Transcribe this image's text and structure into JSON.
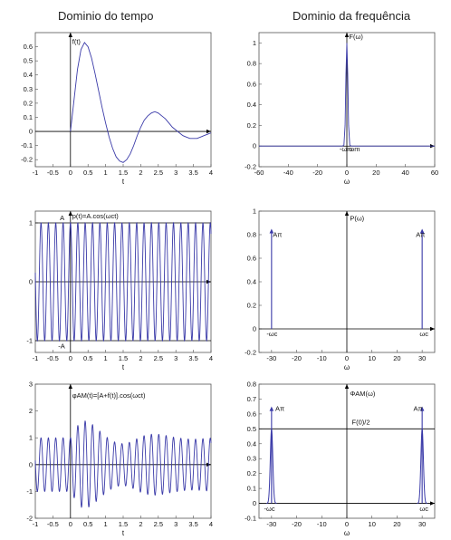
{
  "headings": {
    "time": "Dominio do tempo",
    "freq": "Dominio da frequência"
  },
  "colors": {
    "curve": "#3a3aa8",
    "axis": "#000000",
    "frame": "#555555"
  },
  "chart_data": [
    {
      "id": "ft",
      "type": "line",
      "xlim": [
        -1,
        4
      ],
      "ylim": [
        -0.25,
        0.7
      ],
      "xticks": [
        "-1",
        "-0.5",
        "0",
        "0.5",
        "1",
        "1.5",
        "2",
        "2.5",
        "3",
        "3.5",
        "4"
      ],
      "xtick_values": [
        -1,
        -0.5,
        0,
        0.5,
        1,
        1.5,
        2,
        2.5,
        3,
        3.5,
        4
      ],
      "yticks": [
        "-0.2",
        "-0.1",
        "0",
        "0.1",
        "0.2",
        "0.3",
        "0.4",
        "0.5",
        "0.6"
      ],
      "ytick_values": [
        -0.2,
        -0.1,
        0,
        0.1,
        0.2,
        0.3,
        0.4,
        0.5,
        0.6
      ],
      "xlabel": "t",
      "annotations": [
        {
          "text": "f(t)",
          "x": 0.05,
          "y": 0.62
        }
      ],
      "series": [
        {
          "x": [
            0,
            0.1,
            0.2,
            0.3,
            0.4,
            0.5,
            0.6,
            0.7,
            0.8,
            0.9,
            1.0,
            1.1,
            1.2,
            1.3,
            1.4,
            1.5,
            1.6,
            1.7,
            1.8,
            1.9,
            2.0,
            2.1,
            2.2,
            2.3,
            2.4,
            2.5,
            2.6,
            2.7,
            2.8,
            2.9,
            3.0,
            3.1,
            3.2,
            3.3,
            3.4,
            3.5,
            3.6,
            3.7,
            3.8,
            3.9,
            4.0
          ],
          "y": [
            0,
            0.22,
            0.44,
            0.58,
            0.63,
            0.6,
            0.52,
            0.41,
            0.29,
            0.17,
            0.06,
            -0.04,
            -0.12,
            -0.18,
            -0.21,
            -0.22,
            -0.2,
            -0.16,
            -0.1,
            -0.03,
            0.03,
            0.08,
            0.11,
            0.13,
            0.14,
            0.13,
            0.11,
            0.09,
            0.06,
            0.03,
            0.01,
            -0.01,
            -0.03,
            -0.04,
            -0.05,
            -0.05,
            -0.05,
            -0.04,
            -0.03,
            -0.02,
            -0.01
          ]
        }
      ]
    },
    {
      "id": "Fw",
      "type": "line",
      "xlim": [
        -60,
        60
      ],
      "ylim": [
        -0.2,
        1.1
      ],
      "xticks": [
        "-60",
        "-40",
        "-20",
        "0",
        "20",
        "40",
        "60"
      ],
      "xtick_values": [
        -60,
        -40,
        -20,
        0,
        20,
        40,
        60
      ],
      "yticks": [
        "-0.2",
        "0",
        "0.2",
        "0.4",
        "0.6",
        "0.8",
        "1"
      ],
      "ytick_values": [
        -0.2,
        0,
        0.2,
        0.4,
        0.6,
        0.8,
        1
      ],
      "xlabel": "ω",
      "annotations": [
        {
          "text": "F(ω)",
          "x": 1.5,
          "y": 1.04
        },
        {
          "text": "-ωm",
          "x": -5,
          "y": -0.05
        },
        {
          "text": "ωm",
          "x": 1.5,
          "y": -0.05
        }
      ],
      "series": [
        {
          "x": [
            -60,
            -3,
            -2,
            -1.2,
            -0.6,
            0,
            0.6,
            1.2,
            2,
            3,
            60
          ],
          "y": [
            0,
            0,
            0.01,
            0.2,
            0.7,
            1.0,
            0.7,
            0.2,
            0.01,
            0,
            0
          ]
        }
      ]
    },
    {
      "id": "pt",
      "type": "line",
      "xlim": [
        -1,
        4
      ],
      "ylim": [
        -1.2,
        1.2
      ],
      "xticks": [
        "-1",
        "-0.5",
        "0",
        "0.5",
        "1",
        "1.5",
        "2",
        "2.5",
        "3",
        "3.5",
        "4"
      ],
      "xtick_values": [
        -1,
        -0.5,
        0,
        0.5,
        1,
        1.5,
        2,
        2.5,
        3,
        3.5,
        4
      ],
      "yticks": [
        "-1",
        "0",
        "1"
      ],
      "ytick_values": [
        -1,
        0,
        1
      ],
      "xlabel": "t",
      "annotations": [
        {
          "text": "p(t)=A.cos(ωct)",
          "x": 0.05,
          "y": 1.08
        },
        {
          "text": "A",
          "x": -0.3,
          "y": 1.05
        },
        {
          "text": "-A",
          "x": -0.35,
          "y": -1.13
        }
      ],
      "amplitude": 1,
      "omega": 30,
      "hlines": [
        1,
        -1
      ]
    },
    {
      "id": "Pw",
      "type": "line",
      "xlim": [
        -35,
        35
      ],
      "ylim": [
        -0.2,
        1.0
      ],
      "xticks": [
        "-30",
        "-20",
        "-10",
        "0",
        "10",
        "20",
        "30"
      ],
      "xtick_values": [
        -30,
        -20,
        -10,
        0,
        10,
        20,
        30
      ],
      "yticks": [
        "-0.2",
        "0",
        "0.2",
        "0.4",
        "0.6",
        "0.8",
        "1"
      ],
      "ytick_values": [
        -0.2,
        0,
        0.2,
        0.4,
        0.6,
        0.8,
        1
      ],
      "xlabel": "ω",
      "annotations": [
        {
          "text": "P(ω)",
          "x": 1.2,
          "y": 0.92
        },
        {
          "text": "Aπ",
          "x": -29.5,
          "y": 0.78
        },
        {
          "text": "Aπ",
          "x": 27.5,
          "y": 0.78
        },
        {
          "text": "-ωc",
          "x": -32,
          "y": -0.06
        },
        {
          "text": "ωc",
          "x": 29,
          "y": -0.06
        }
      ],
      "impulses": [
        {
          "x": -30,
          "y": 0.85
        },
        {
          "x": 30,
          "y": 0.85
        }
      ]
    },
    {
      "id": "phit",
      "type": "line",
      "xlim": [
        -1,
        4
      ],
      "ylim": [
        -2,
        3
      ],
      "xticks": [
        "-1",
        "-0.5",
        "0",
        "0.5",
        "1",
        "1.5",
        "2",
        "2.5",
        "3",
        "3.5",
        "4"
      ],
      "xtick_values": [
        -1,
        -0.5,
        0,
        0.5,
        1,
        1.5,
        2,
        2.5,
        3,
        3.5,
        4
      ],
      "yticks": [
        "-2",
        "-1",
        "0",
        "1",
        "2",
        "3"
      ],
      "ytick_values": [
        -2,
        -1,
        0,
        1,
        2,
        3
      ],
      "xlabel": "t",
      "annotations": [
        {
          "text": "φAM(t)=[A+f(t)].cos(ωct)",
          "x": 0.05,
          "y": 2.5
        }
      ],
      "amplitude": 1,
      "omega": 30,
      "envelope_from": "ft"
    },
    {
      "id": "Phiw",
      "type": "line",
      "xlim": [
        -35,
        35
      ],
      "ylim": [
        -0.1,
        0.8
      ],
      "xticks": [
        "-30",
        "-20",
        "-10",
        "0",
        "10",
        "20",
        "30"
      ],
      "xtick_values": [
        -30,
        -20,
        -10,
        0,
        10,
        20,
        30
      ],
      "yticks": [
        "-0.1",
        "0",
        "0.1",
        "0.2",
        "0.3",
        "0.4",
        "0.5",
        "0.6",
        "0.7",
        "0.8"
      ],
      "ytick_values": [
        -0.1,
        0,
        0.1,
        0.2,
        0.3,
        0.4,
        0.5,
        0.6,
        0.7,
        0.8
      ],
      "xlabel": "ω",
      "annotations": [
        {
          "text": "ΦAM(ω)",
          "x": 1.2,
          "y": 0.72
        },
        {
          "text": "Aπ",
          "x": -28.5,
          "y": 0.62
        },
        {
          "text": "Aπ",
          "x": 26.5,
          "y": 0.62
        },
        {
          "text": "F(0)/2",
          "x": 2,
          "y": 0.53
        },
        {
          "text": "-ωc",
          "x": -33,
          "y": -0.05
        },
        {
          "text": "ωc",
          "x": 29,
          "y": -0.05
        }
      ],
      "hlines": [
        0.5
      ],
      "impulses": [
        {
          "x": -30,
          "y": 0.65
        },
        {
          "x": 30,
          "y": 0.65
        }
      ],
      "peaks": [
        {
          "center": -30,
          "height": 0.5
        },
        {
          "center": 30,
          "height": 0.5
        }
      ]
    }
  ]
}
